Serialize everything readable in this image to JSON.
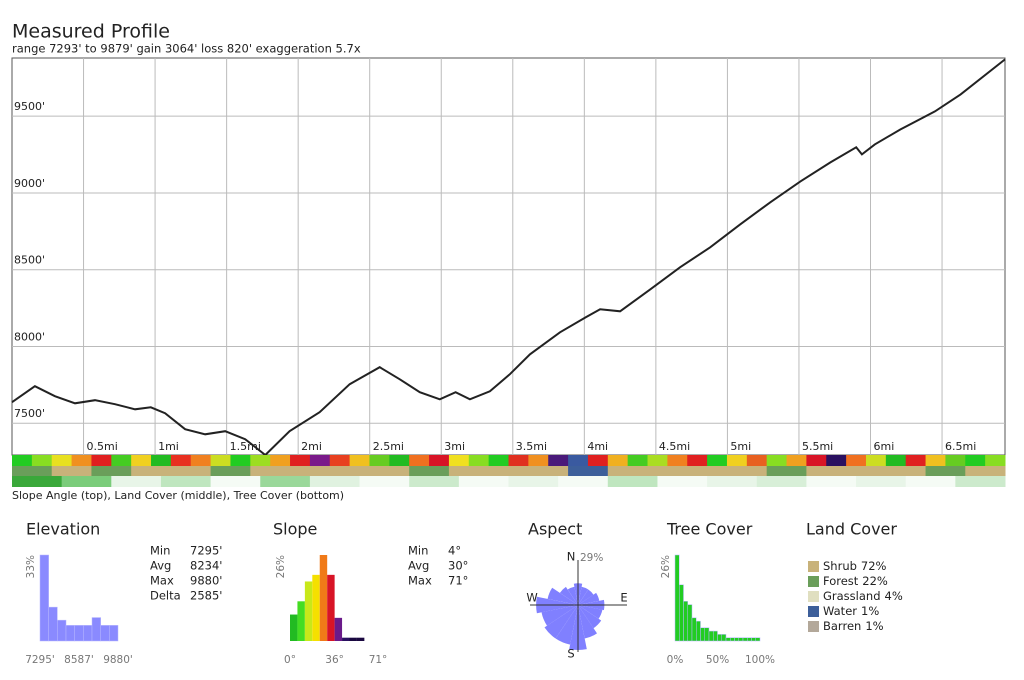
{
  "chart_data": [
    {
      "type": "line",
      "title": "Measured Profile",
      "subtitle": "range 7293' to 9879'  gain 3064'  loss 820'  exaggeration 5.7x",
      "x": [
        0,
        0.16,
        0.3,
        0.44,
        0.58,
        0.72,
        0.86,
        0.97,
        1.07,
        1.21,
        1.35,
        1.49,
        1.63,
        1.77,
        1.94,
        2.15,
        2.36,
        2.57,
        2.71,
        2.85,
        2.99,
        3.1,
        3.2,
        3.34,
        3.48,
        3.62,
        3.83,
        4.01,
        4.11,
        4.25,
        4.46,
        4.67,
        4.88,
        5.09,
        5.3,
        5.51,
        5.72,
        5.9,
        5.94,
        6.03,
        6.21,
        6.45,
        6.63,
        6.94
      ],
      "values": [
        7637,
        7741,
        7676,
        7630,
        7650,
        7624,
        7591,
        7604,
        7565,
        7461,
        7428,
        7448,
        7396,
        7293,
        7448,
        7572,
        7754,
        7865,
        7786,
        7702,
        7656,
        7702,
        7656,
        7708,
        7819,
        7949,
        8092,
        8190,
        8242,
        8229,
        8372,
        8516,
        8646,
        8796,
        8939,
        9075,
        9199,
        9297,
        9251,
        9316,
        9414,
        9531,
        9642,
        9870
      ],
      "color": "#222222",
      "xlim": [
        0,
        6.94
      ],
      "ylim": [
        7293,
        9879
      ],
      "xticks": [
        {
          "value": 0.5,
          "label": "0.5mi"
        },
        {
          "value": 1,
          "label": "1mi"
        },
        {
          "value": 1.5,
          "label": "1.5mi"
        },
        {
          "value": 2,
          "label": "2mi"
        },
        {
          "value": 2.5,
          "label": "2.5mi"
        },
        {
          "value": 3,
          "label": "3mi"
        },
        {
          "value": 3.5,
          "label": "3.5mi"
        },
        {
          "value": 4,
          "label": "4mi"
        },
        {
          "value": 4.5,
          "label": "4.5mi"
        },
        {
          "value": 5,
          "label": "5mi"
        },
        {
          "value": 5.5,
          "label": "5.5mi"
        },
        {
          "value": 6,
          "label": "6mi"
        },
        {
          "value": 6.5,
          "label": "6.5mi"
        }
      ],
      "yticks": [
        {
          "value": 7500,
          "label": "7500'"
        },
        {
          "value": 8000,
          "label": "8000'"
        },
        {
          "value": 8500,
          "label": "8500'"
        },
        {
          "value": 9000,
          "label": "9000'"
        },
        {
          "value": 9500,
          "label": "9500'"
        }
      ],
      "grid": true,
      "strips": {
        "caption": "Slope Angle (top), Land Cover (middle), Tree Cover (bottom)",
        "rows": [
          [
            "#22cc22",
            "#88dd22",
            "#e8e020",
            "#f09020",
            "#e02020",
            "#44cc22",
            "#f0d020",
            "#22bb22",
            "#e83020",
            "#f08020",
            "#ccdd22",
            "#22cc22",
            "#9ddd22",
            "#f0a020",
            "#e02020",
            "#7a1a8a",
            "#e84020",
            "#f0c020",
            "#66cc22",
            "#22bb22",
            "#f07020",
            "#d81426",
            "#f0e020",
            "#88dd22",
            "#22cc22",
            "#e03020",
            "#f09020",
            "#4a1a7a",
            "#3a5aa0",
            "#e02020",
            "#f0b020",
            "#44cc22",
            "#aadd22",
            "#f08020",
            "#e02020",
            "#22cc22",
            "#f0d020",
            "#e86020",
            "#88dd22",
            "#f0a020",
            "#d81426",
            "#2a1060",
            "#f07020",
            "#ccdd22",
            "#22bb22",
            "#e02020",
            "#f0c020",
            "#66cc22",
            "#22cc22",
            "#88dd22"
          ],
          [
            "#6a9e5a",
            "#c8b27a",
            "#6a9e5a",
            "#c8b27a",
            "#c8b27a",
            "#6a9e5a",
            "#c8b27a",
            "#c8b27a",
            "#c8b27a",
            "#c8b27a",
            "#6a9e5a",
            "#c8b27a",
            "#c8b27a",
            "#c8b27a",
            "#3d5f9a",
            "#c8b27a",
            "#c8b27a",
            "#c8b27a",
            "#c8b27a",
            "#6a9e5a",
            "#c8b27a",
            "#c8b27a",
            "#c8b27a",
            "#6a9e5a",
            "#c8b27a"
          ],
          [
            "#3aa83a",
            "#7acc7a",
            "#e8f5e8",
            "#bfe6bf",
            "#f5fbf5",
            "#9ad89a",
            "#e0f2e0",
            "#f5fbf5",
            "#cceacc",
            "#f5fbf5",
            "#e8f5e8",
            "#f5fbf5",
            "#bfe6bf",
            "#f5fbf5",
            "#e8f5e8",
            "#d8efd8",
            "#f5fbf5",
            "#e8f5e8",
            "#f5fbf5",
            "#cceacc"
          ]
        ]
      }
    },
    {
      "type": "histogram",
      "title": "Elevation",
      "bins": [
        7295,
        7582,
        7870,
        8157,
        8444,
        8732,
        9019,
        9306,
        9593,
        9880
      ],
      "values": [
        33,
        13,
        8,
        6,
        6,
        6,
        9,
        6,
        6
      ],
      "color": "#8a8aff",
      "xlim": [
        7295,
        9880
      ],
      "ylim": [
        0,
        33
      ],
      "xticks": [
        {
          "value": 7295,
          "label": "7295'"
        },
        {
          "value": 8587,
          "label": "8587'"
        },
        {
          "value": 9880,
          "label": "9880'"
        }
      ],
      "yticks": [
        {
          "value": 33,
          "label": "33%"
        }
      ],
      "stats": [
        [
          "Min",
          "7295'"
        ],
        [
          "Avg",
          "8234'"
        ],
        [
          "Max",
          "9880'"
        ],
        [
          "Delta",
          "2585'"
        ]
      ]
    },
    {
      "type": "histogram",
      "title": "Slope",
      "bins": [
        0,
        6,
        12,
        18,
        24,
        30,
        36,
        42,
        48,
        54,
        60,
        66,
        72
      ],
      "values": [
        8,
        12,
        18,
        20,
        26,
        20,
        7,
        1,
        1,
        1,
        0,
        0
      ],
      "colors": [
        "#22bb22",
        "#44dd22",
        "#c8e81a",
        "#f5e000",
        "#f07a18",
        "#d81426",
        "#6a1a8a",
        "#2a1060",
        "#1a0840",
        "#1a0840",
        "#1a0840",
        "#1a0840"
      ],
      "xlim": [
        0,
        71
      ],
      "ylim": [
        0,
        26
      ],
      "xticks": [
        {
          "value": 0,
          "label": "0°"
        },
        {
          "value": 36,
          "label": "36°"
        },
        {
          "value": 71,
          "label": "71°"
        }
      ],
      "yticks": [
        {
          "value": 26,
          "label": "26%"
        }
      ],
      "stats": [
        [
          "Min",
          "4°"
        ],
        [
          "Avg",
          "30°"
        ],
        [
          "Max",
          "71°"
        ]
      ]
    },
    {
      "type": "polar",
      "title": "Aspect",
      "categories": [
        "N",
        null,
        null,
        null,
        "E",
        null,
        null,
        null,
        "S",
        null,
        null,
        null,
        "W",
        null,
        null,
        null
      ],
      "values": [
        14,
        12,
        12,
        14,
        17,
        16,
        18,
        22,
        29,
        26,
        26,
        24,
        27,
        20,
        14,
        12
      ],
      "color": "#8080ff",
      "rlim": [
        0,
        29
      ],
      "rticks": [
        {
          "value": 29,
          "label": "29%"
        }
      ]
    },
    {
      "type": "histogram",
      "title": "Tree Cover",
      "bins": [
        0,
        5,
        10,
        15,
        20,
        25,
        30,
        35,
        40,
        45,
        50,
        55,
        60,
        65,
        70,
        75,
        80,
        85,
        90,
        95,
        100
      ],
      "values": [
        26,
        17,
        12,
        11,
        7,
        6,
        4,
        4,
        3,
        3,
        2,
        2,
        1,
        1,
        1,
        1,
        1,
        1,
        1,
        1
      ],
      "color": "#22cc22",
      "xlim": [
        0,
        100
      ],
      "ylim": [
        0,
        26
      ],
      "xticks": [
        {
          "value": 0,
          "label": "0%"
        },
        {
          "value": 50,
          "label": "50%"
        },
        {
          "value": 100,
          "label": "100%"
        }
      ],
      "yticks": [
        {
          "value": 26,
          "label": "26%"
        }
      ]
    },
    {
      "type": "legend",
      "title": "Land Cover",
      "categories": [
        "Shrub",
        "Forest",
        "Grassland",
        "Water",
        "Barren"
      ],
      "values": [
        72,
        22,
        4,
        1,
        1
      ],
      "value_labels": [
        "72%",
        "22%",
        "4%",
        "1%",
        "1%"
      ],
      "colors": [
        "#c8b27a",
        "#6a9e5a",
        "#e0dfc0",
        "#3d5f9a",
        "#b3a89a"
      ]
    }
  ]
}
